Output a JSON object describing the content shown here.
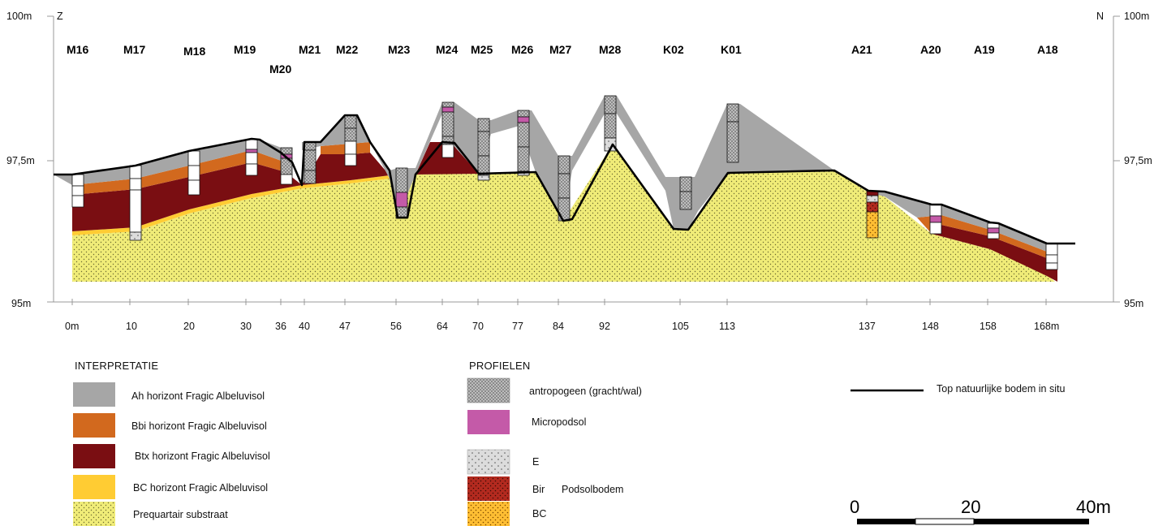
{
  "axis": {
    "left_top": "100m",
    "left_mid": "97,5m",
    "left_bottom": "95m",
    "right_top": "100m",
    "right_mid": "97,5m",
    "right_bottom": "95m",
    "south": "Z",
    "north": "N"
  },
  "profiles": [
    {
      "label": "M16",
      "dist": "0m"
    },
    {
      "label": "M17",
      "dist": "10"
    },
    {
      "label": "M18",
      "dist": "20"
    },
    {
      "label": "M19",
      "dist": "30"
    },
    {
      "label": "M20",
      "dist": "36"
    },
    {
      "label": "M21",
      "dist": "40"
    },
    {
      "label": "M22",
      "dist": "47"
    },
    {
      "label": "M23",
      "dist": "56"
    },
    {
      "label": "M24",
      "dist": "64"
    },
    {
      "label": "M25",
      "dist": "70"
    },
    {
      "label": "M26",
      "dist": "77"
    },
    {
      "label": "M27",
      "dist": "84"
    },
    {
      "label": "M28",
      "dist": "92"
    },
    {
      "label": "K02",
      "dist": "105"
    },
    {
      "label": "K01",
      "dist": "113"
    },
    {
      "label": "A21",
      "dist": "137"
    },
    {
      "label": "A20",
      "dist": "148"
    },
    {
      "label": "A19",
      "dist": "158"
    },
    {
      "label": "A18",
      "dist": "168m"
    }
  ],
  "legend_interpretatie": {
    "title": "INTERPRETATIE",
    "items": [
      {
        "label": "Ah horizont Fragic Albeluvisol",
        "color": "#a6a6a6"
      },
      {
        "label": "Bbi horizont Fragic Albeluvisol",
        "color": "#d2691e"
      },
      {
        "label": "Btx horizont Fragic Albeluvisol",
        "color": "#7a0e12"
      },
      {
        "label": "BC horizont Fragic Albeluvisol",
        "color": "#ffcc33"
      },
      {
        "label": "Prequartair substraat",
        "color": "#f0ec78"
      }
    ]
  },
  "legend_profielen": {
    "title": "PROFIELEN",
    "items": [
      {
        "label": "antropogeen (gracht/wal)",
        "color": "#bdbdbd"
      },
      {
        "label": "Micropodsol",
        "color": "#c45aa8"
      },
      {
        "label": "E",
        "color": "#d9d9d9"
      },
      {
        "label": "Bir",
        "color": "#b32a1f"
      },
      {
        "label": "BC",
        "color": "#ffbe33"
      }
    ],
    "podsol_label": "Podsolbodem"
  },
  "legend_line": {
    "label": "Top natuurlijke bodem in situ"
  },
  "scalebar": {
    "ticks": [
      "0",
      "20",
      "40m"
    ]
  }
}
